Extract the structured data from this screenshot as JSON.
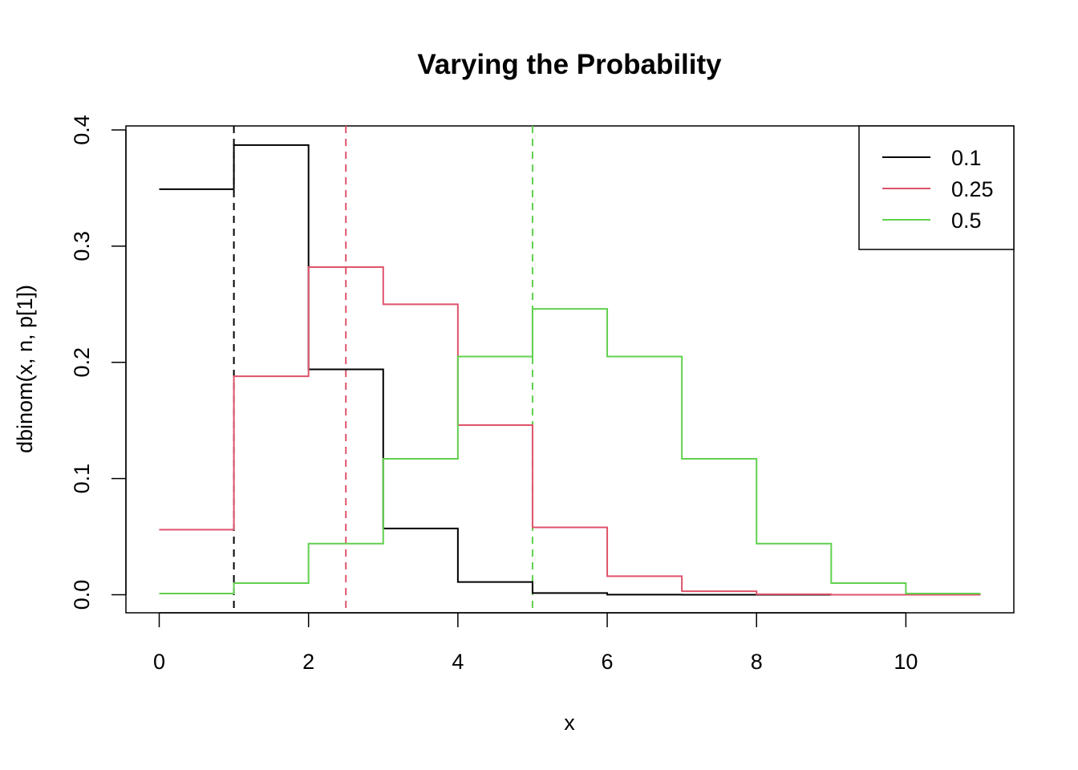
{
  "chart_data": {
    "type": "line",
    "step": true,
    "title": "Varying the Probability",
    "xlabel": "x",
    "ylabel": "dbinom(x, n, p[1])",
    "xlim": [
      0,
      11
    ],
    "ylim": [
      0,
      0.4
    ],
    "xticks": [
      "0",
      "2",
      "4",
      "6",
      "8",
      "10"
    ],
    "yticks": [
      "0.0",
      "0.1",
      "0.2",
      "0.3",
      "0.4"
    ],
    "x": [
      0,
      1,
      2,
      3,
      4,
      5,
      6,
      7,
      8,
      9,
      10,
      11
    ],
    "series": [
      {
        "name": "0.1",
        "color": "#000000",
        "values": [
          0.349,
          0.387,
          0.194,
          0.057,
          0.011,
          0.0015,
          0.0001,
          0.0,
          0.0,
          0.0,
          0.0,
          0.0
        ],
        "mean": 1
      },
      {
        "name": "0.25",
        "color": "#DF536B",
        "values": [
          0.056,
          0.188,
          0.282,
          0.25,
          0.146,
          0.058,
          0.016,
          0.003,
          0.0004,
          0.0,
          0.0,
          0.0
        ],
        "mean": 2.5
      },
      {
        "name": "0.5",
        "color": "#61D04F",
        "values": [
          0.001,
          0.01,
          0.044,
          0.117,
          0.205,
          0.246,
          0.205,
          0.117,
          0.044,
          0.01,
          0.001,
          0.001
        ],
        "mean": 5
      }
    ],
    "vlines_dashed": true,
    "grid": false,
    "legend_position": "top-right"
  }
}
